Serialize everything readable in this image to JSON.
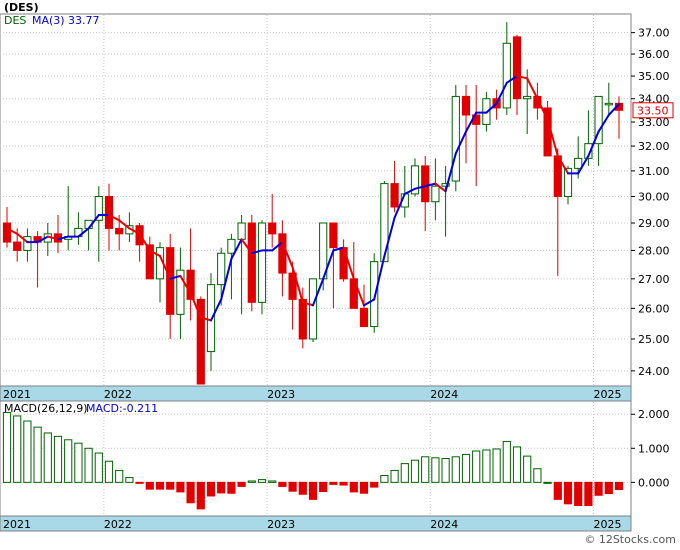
{
  "title": "(DES)",
  "watermark": "© 12Stocks.com",
  "price_panel": {
    "legend_symbol": "DES",
    "legend_ma_label": "MA(3)",
    "legend_ma_value": "33.77",
    "last_price_label": "33.50",
    "y_ticks": [
      "24.00",
      "25.00",
      "26.00",
      "27.00",
      "28.00",
      "29.00",
      "30.00",
      "31.00",
      "32.00",
      "33.00",
      "34.00",
      "35.00",
      "36.00",
      "37.00"
    ]
  },
  "macd_panel": {
    "legend_label": "MACD(26,12,9)",
    "legend_value_label": "MACD:-0.211",
    "y_ticks": [
      "0.000",
      "1.000",
      "2.000"
    ]
  },
  "x_axis_labels": [
    "2021",
    "2022",
    "2023",
    "2024",
    "2025"
  ],
  "colors": {
    "up": "#006400",
    "down": "#e00000",
    "ma_up": "#0000dd",
    "ma_down": "#ee0000",
    "axis_band": "#a9d9e6",
    "grid": "#c8c8c8"
  },
  "chart_data": [
    {
      "type": "candlestick",
      "series_name": "DES",
      "interval": "monthly",
      "x_year_starts": [
        {
          "label": "2021",
          "index": 0
        },
        {
          "label": "2022",
          "index": 10
        },
        {
          "label": "2023",
          "index": 26
        },
        {
          "label": "2024",
          "index": 42
        },
        {
          "label": "2025",
          "index": 58
        }
      ],
      "y_scale": "log",
      "ylim": [
        23.6,
        37.7
      ],
      "ohlc": [
        [
          29.0,
          29.6,
          28.1,
          28.3
        ],
        [
          28.3,
          28.8,
          27.6,
          28.0
        ],
        [
          28.0,
          28.8,
          27.6,
          28.5
        ],
        [
          28.5,
          28.7,
          26.7,
          28.3
        ],
        [
          28.3,
          29.0,
          27.8,
          28.6
        ],
        [
          28.6,
          29.3,
          27.9,
          28.3
        ],
        [
          28.4,
          30.4,
          28.0,
          28.5
        ],
        [
          28.5,
          29.4,
          28.2,
          28.8
        ],
        [
          28.8,
          29.0,
          28.0,
          29.1
        ],
        [
          29.1,
          30.4,
          27.6,
          30.0
        ],
        [
          30.0,
          30.5,
          28.0,
          28.8
        ],
        [
          28.8,
          29.3,
          28.0,
          28.6
        ],
        [
          28.6,
          29.4,
          28.3,
          28.9
        ],
        [
          28.9,
          29.0,
          27.6,
          28.2
        ],
        [
          28.2,
          28.5,
          27.0,
          27.0
        ],
        [
          27.0,
          28.3,
          26.2,
          28.1
        ],
        [
          28.1,
          28.6,
          25.0,
          25.8
        ],
        [
          25.8,
          28.1,
          25.0,
          27.3
        ],
        [
          27.3,
          28.8,
          25.6,
          26.3
        ],
        [
          26.3,
          26.4,
          23.6,
          23.6
        ],
        [
          24.6,
          27.2,
          24.0,
          26.8
        ],
        [
          26.8,
          28.1,
          26.1,
          27.9
        ],
        [
          27.9,
          28.6,
          26.3,
          28.4
        ],
        [
          28.4,
          29.3,
          25.8,
          29.0
        ],
        [
          29.0,
          29.3,
          25.9,
          26.2
        ],
        [
          26.2,
          29.1,
          25.8,
          29.0
        ],
        [
          29.0,
          30.1,
          28.1,
          28.6
        ],
        [
          28.6,
          29.1,
          26.4,
          27.2
        ],
        [
          27.2,
          27.6,
          25.3,
          26.3
        ],
        [
          26.3,
          26.7,
          24.7,
          25.0
        ],
        [
          25.0,
          27.0,
          24.9,
          27.0
        ],
        [
          27.0,
          29.0,
          26.6,
          29.0
        ],
        [
          29.0,
          29.0,
          26.0,
          28.1
        ],
        [
          28.1,
          28.4,
          26.9,
          27.0
        ],
        [
          27.0,
          28.3,
          26.0,
          26.0
        ],
        [
          26.0,
          26.8,
          25.4,
          25.4
        ],
        [
          25.4,
          27.9,
          25.2,
          27.6
        ],
        [
          27.6,
          30.6,
          27.6,
          30.5
        ],
        [
          30.5,
          31.4,
          29.4,
          29.6
        ],
        [
          29.6,
          31.2,
          29.2,
          30.1
        ],
        [
          30.1,
          31.5,
          30.0,
          31.2
        ],
        [
          31.2,
          31.6,
          28.7,
          29.8
        ],
        [
          29.8,
          31.5,
          29.1,
          30.4
        ],
        [
          30.4,
          31.2,
          28.5,
          30.5
        ],
        [
          30.6,
          34.6,
          30.2,
          34.1
        ],
        [
          34.1,
          34.6,
          31.3,
          33.3
        ],
        [
          33.3,
          34.6,
          30.4,
          32.9
        ],
        [
          32.9,
          34.3,
          32.6,
          34.0
        ],
        [
          34.0,
          34.4,
          33.1,
          33.6
        ],
        [
          33.6,
          37.5,
          33.3,
          36.5
        ],
        [
          36.8,
          36.9,
          33.3,
          34.0
        ],
        [
          34.0,
          35.3,
          32.5,
          34.1
        ],
        [
          34.1,
          34.7,
          33.1,
          33.6
        ],
        [
          33.6,
          33.9,
          31.7,
          31.6
        ],
        [
          31.6,
          31.9,
          27.1,
          30.0
        ],
        [
          30.0,
          31.2,
          29.7,
          31.1
        ],
        [
          31.1,
          32.4,
          30.7,
          31.5
        ],
        [
          31.5,
          33.5,
          31.2,
          32.1
        ],
        [
          32.1,
          34.0,
          31.2,
          34.1
        ],
        [
          33.8,
          34.7,
          33.3,
          33.8
        ],
        [
          33.8,
          34.1,
          32.3,
          33.5
        ]
      ],
      "ma3": [
        28.8,
        28.6,
        28.3,
        28.3,
        28.5,
        28.4,
        28.5,
        28.5,
        28.8,
        29.3,
        29.3,
        29.1,
        28.8,
        28.6,
        28.0,
        27.8,
        27.0,
        27.1,
        26.5,
        25.7,
        25.6,
        26.3,
        27.7,
        28.4,
        27.9,
        28.0,
        28.0,
        28.3,
        27.4,
        26.2,
        26.1,
        27.0,
        28.0,
        28.1,
        27.0,
        26.1,
        26.3,
        27.8,
        29.2,
        30.1,
        30.3,
        30.4,
        30.5,
        30.2,
        31.7,
        32.6,
        33.4,
        33.4,
        33.8,
        34.7,
        35.0,
        34.9,
        34.0,
        33.1,
        31.6,
        30.9,
        30.9,
        31.6,
        32.6,
        33.3,
        33.77
      ],
      "macd_histogram": [
        2.05,
        1.95,
        1.8,
        1.62,
        1.45,
        1.35,
        1.25,
        1.15,
        1.0,
        0.86,
        0.62,
        0.35,
        0.14,
        -0.02,
        -0.2,
        -0.2,
        -0.2,
        -0.28,
        -0.6,
        -0.78,
        -0.4,
        -0.31,
        -0.32,
        -0.12,
        0.04,
        0.08,
        0.04,
        -0.12,
        -0.26,
        -0.35,
        -0.5,
        -0.27,
        -0.06,
        -0.08,
        -0.28,
        -0.32,
        -0.14,
        0.2,
        0.35,
        0.55,
        0.65,
        0.75,
        0.72,
        0.7,
        0.75,
        0.82,
        0.92,
        0.95,
        0.98,
        1.2,
        1.04,
        0.77,
        0.4,
        0.0,
        -0.5,
        -0.63,
        -0.68,
        -0.68,
        -0.38,
        -0.33,
        -0.211
      ],
      "macd_ylim": [
        -0.9,
        2.3
      ]
    }
  ]
}
